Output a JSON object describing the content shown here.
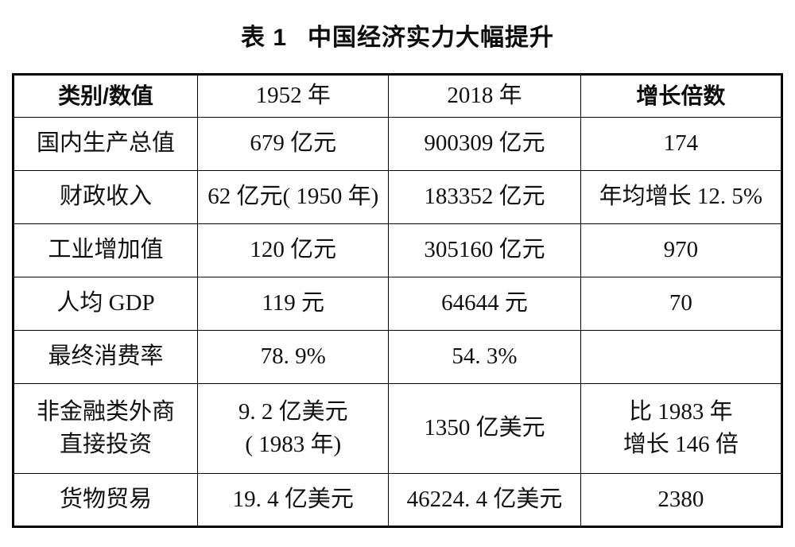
{
  "title": {
    "label": "表 1",
    "text": "中国经济实力大幅提升"
  },
  "table": {
    "headers": [
      "类别/数值",
      "1952 年",
      "2018 年",
      "增长倍数"
    ],
    "rows": [
      {
        "cells": [
          "国内生产总值",
          "679 亿元",
          "900309 亿元",
          "174"
        ]
      },
      {
        "cells": [
          "财政收入",
          "62 亿元( 1950 年)",
          "183352 亿元",
          "年均增长 12. 5%"
        ]
      },
      {
        "cells": [
          "工业增加值",
          "120 亿元",
          "305160 亿元",
          "970"
        ]
      },
      {
        "cells": [
          "人均 GDP",
          "119 元",
          "64644 元",
          "70"
        ]
      },
      {
        "cells": [
          "最终消费率",
          "78. 9%",
          "54. 3%",
          ""
        ]
      },
      {
        "cells": [
          "非金融类外商\n直接投资",
          "9. 2 亿美元\n( 1983 年)",
          "1350 亿美元",
          "比 1983 年\n增长 146 倍"
        ]
      },
      {
        "cells": [
          "货物贸易",
          "19. 4 亿美元",
          "46224. 4 亿美元",
          "2380"
        ]
      }
    ]
  }
}
